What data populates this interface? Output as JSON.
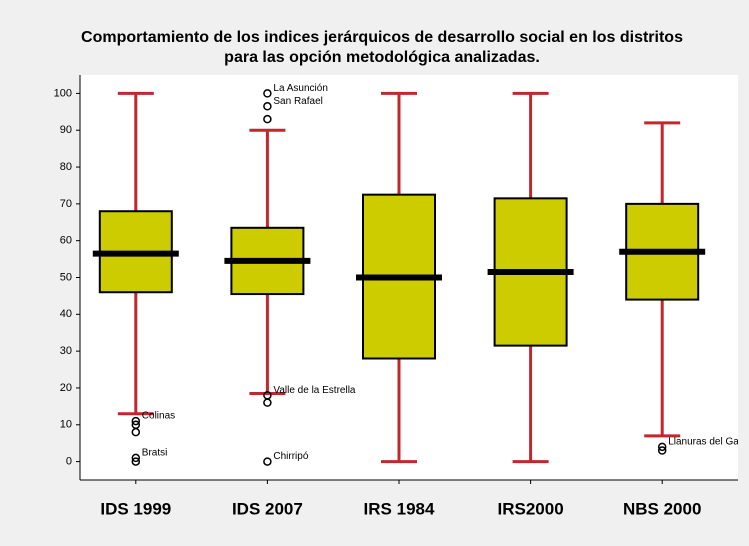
{
  "chart_data": {
    "type": "box",
    "title": [
      "Comportamiento de los indices jerárquicos de desarrollo social en los distritos",
      "para las opción metodológica analizadas."
    ],
    "categories": [
      "IDS 1999",
      "IDS 2007",
      "IRS 1984",
      "IRS2000",
      "NBS 2000"
    ],
    "boxes": [
      {
        "min": 13,
        "q1": 46,
        "median": 56.5,
        "q3": 68,
        "max": 100,
        "outliers": [
          {
            "value": 11,
            "label": "Colinas"
          },
          {
            "value": 10
          },
          {
            "value": 8
          },
          {
            "value": 1,
            "label": "Bratsi"
          },
          {
            "value": 0
          }
        ]
      },
      {
        "min": 18.5,
        "q1": 45.5,
        "median": 54.5,
        "q3": 63.5,
        "max": 90,
        "outliers": [
          {
            "value": 100,
            "label": "La Asunción"
          },
          {
            "value": 96.5,
            "label": "San Rafael"
          },
          {
            "value": 93
          },
          {
            "value": 18,
            "label": "Valle de la Estrella"
          },
          {
            "value": 16
          },
          {
            "value": 0,
            "label": "Chirripó"
          }
        ]
      },
      {
        "min": 0,
        "q1": 28,
        "median": 50,
        "q3": 72.5,
        "max": 100,
        "outliers": []
      },
      {
        "min": 0,
        "q1": 31.5,
        "median": 51.5,
        "q3": 71.5,
        "max": 100,
        "outliers": []
      },
      {
        "min": 7,
        "q1": 44,
        "median": 57,
        "q3": 70,
        "max": 92,
        "outliers": [
          {
            "value": 4,
            "label": "Llanuras del Gasp"
          },
          {
            "value": 3
          }
        ]
      }
    ],
    "box_color": "#cccc00",
    "whisker_color": "#c0282d",
    "median_color": "#000000",
    "ylim": [
      -5,
      105
    ],
    "yticks": [
      0,
      10,
      20,
      30,
      40,
      50,
      60,
      70,
      80,
      90,
      100
    ],
    "grid": false
  }
}
